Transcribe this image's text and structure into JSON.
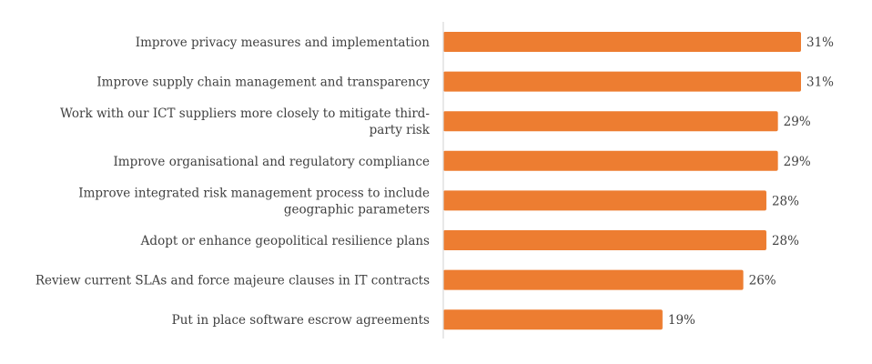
{
  "chart_data": {
    "type": "bar",
    "orientation": "horizontal",
    "categories": [
      [
        "Improve privacy measures and implementation"
      ],
      [
        "Improve supply chain management and transparency"
      ],
      [
        "Work with our ICT suppliers more closely to mitigate third-",
        "party risk"
      ],
      [
        "Improve organisational and regulatory compliance"
      ],
      [
        "Improve integrated risk management process to include",
        "geographic parameters"
      ],
      [
        "Adopt or enhance geopolitical resilience plans"
      ],
      [
        "Review current SLAs and force majeure clauses in IT contracts"
      ],
      [
        "Put in place software escrow agreements"
      ]
    ],
    "values": [
      31,
      31,
      29,
      29,
      28,
      28,
      26,
      19
    ],
    "value_labels": [
      "31%",
      "31%",
      "29%",
      "29%",
      "28%",
      "28%",
      "26%",
      "19%"
    ],
    "unit": "%",
    "xlim": [
      0,
      31
    ],
    "grid": false,
    "bar_color": "#ED7D31",
    "axis_color": "#D9D9D9",
    "text_color": "#404040"
  }
}
